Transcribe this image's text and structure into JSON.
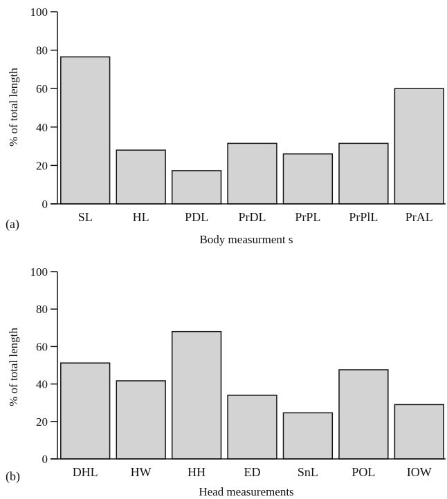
{
  "chart_data": [
    {
      "type": "bar",
      "panel_label": "(a)",
      "categories": [
        "SL",
        "HL",
        "PDL",
        "PrDL",
        "PrPL",
        "PrPlL",
        "PrAL"
      ],
      "values": [
        76.5,
        28,
        17.3,
        31.5,
        26,
        31.5,
        60
      ],
      "xlabel": "Body measurment s",
      "ylabel": "% of total length",
      "ylim": [
        0,
        100
      ],
      "yticks": [
        0,
        20,
        40,
        60,
        80,
        100
      ],
      "bar_color": "#d3d3d3",
      "grid": false
    },
    {
      "type": "bar",
      "panel_label": "(b)",
      "categories": [
        "DHL",
        "HW",
        "HH",
        "ED",
        "SnL",
        "POL",
        "IOW"
      ],
      "values": [
        51.2,
        41.7,
        68,
        34,
        24.6,
        47.6,
        29
      ],
      "xlabel": "Head measurements",
      "ylabel": "% of total length",
      "ylim": [
        0,
        100
      ],
      "yticks": [
        0,
        20,
        40,
        60,
        80,
        100
      ],
      "bar_color": "#d3d3d3",
      "grid": false
    }
  ]
}
